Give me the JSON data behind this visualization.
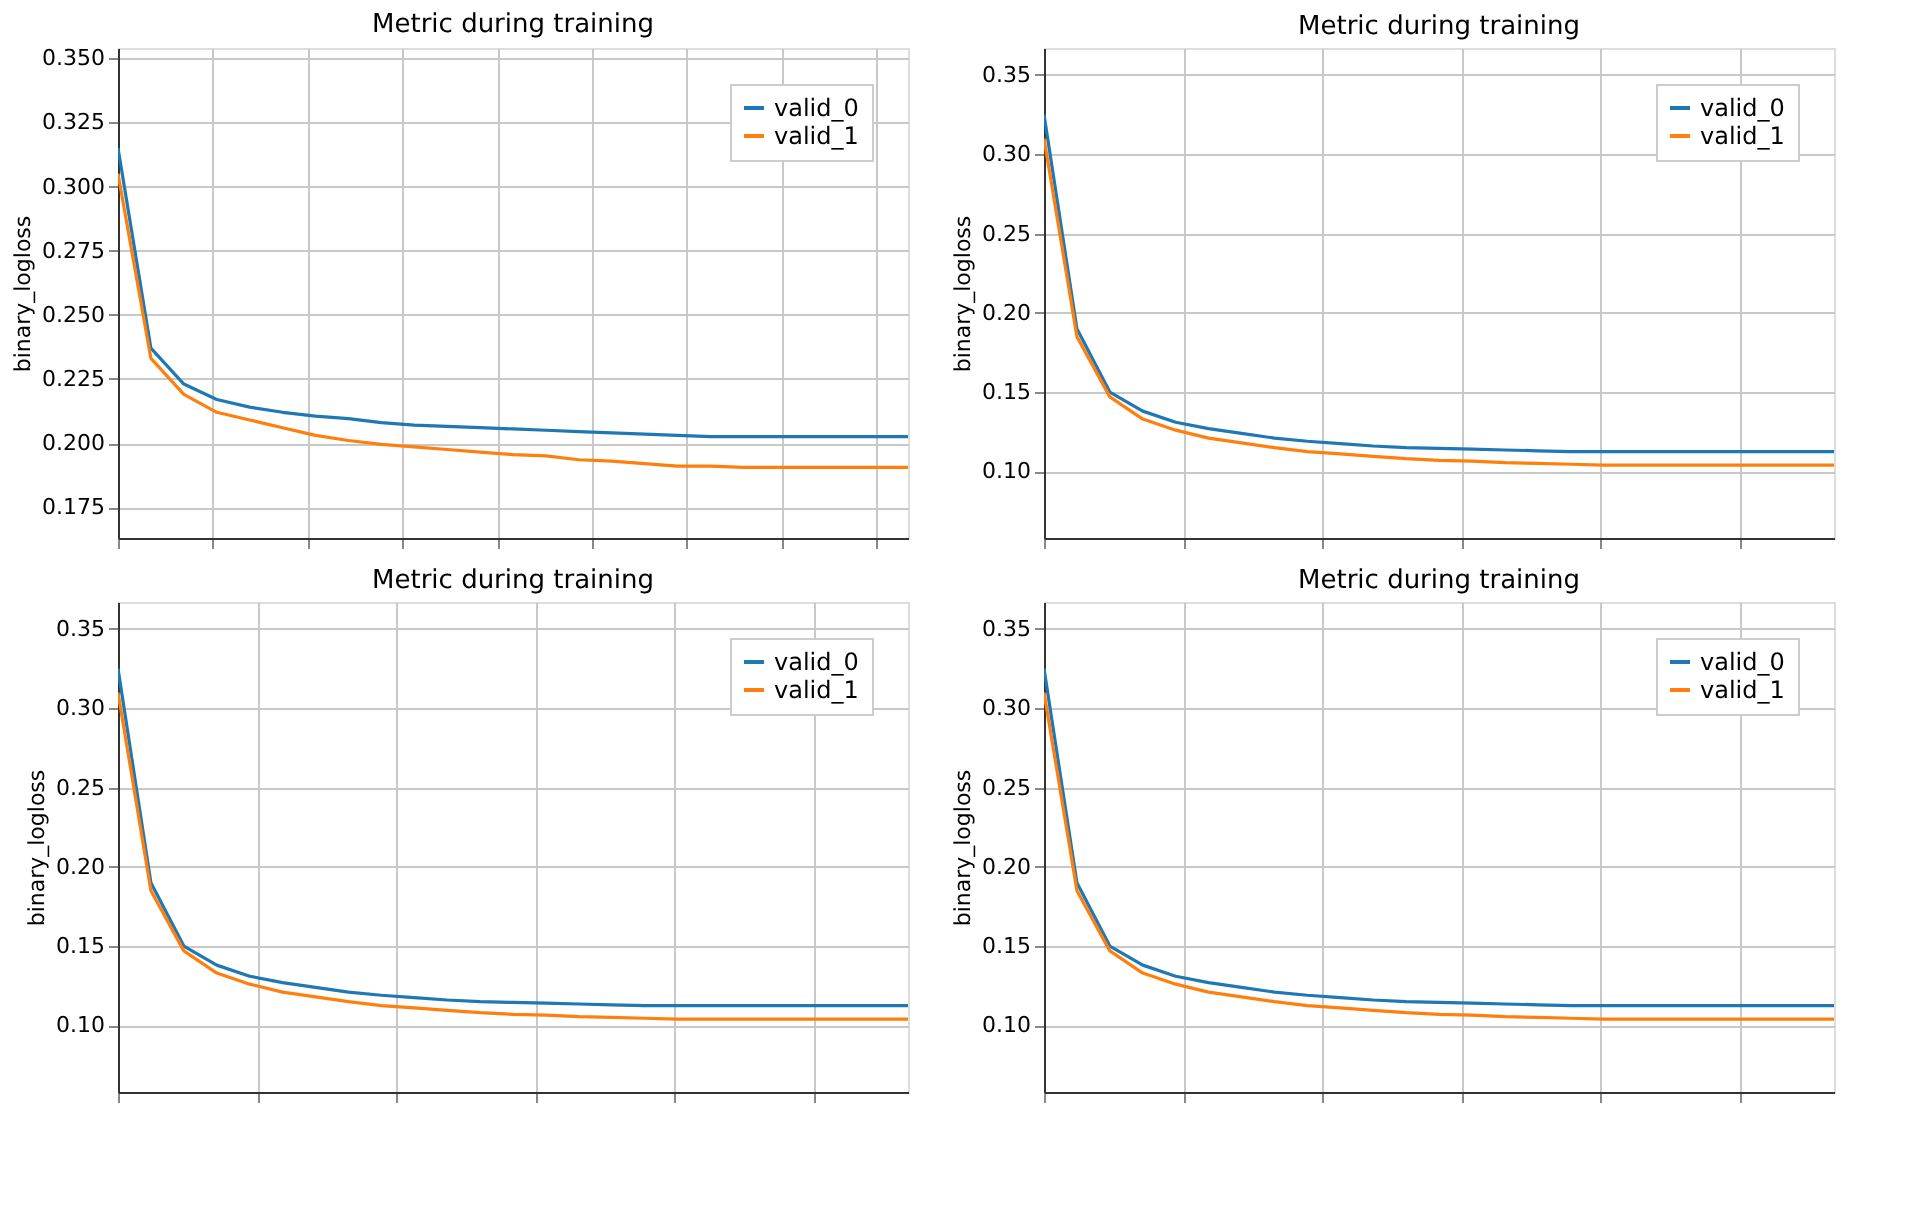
{
  "chart_data": [
    {
      "type": "line",
      "title": "Metric during training",
      "ylabel": "binary_logloss",
      "categories": [
        null,
        null,
        null,
        null,
        null,
        null,
        null,
        null,
        null,
        null,
        null,
        null,
        null,
        null,
        null,
        null,
        null,
        null,
        null,
        null,
        null,
        null,
        null,
        null,
        null
      ],
      "series": [
        {
          "name": "valid_0",
          "color": "#1f77b4",
          "values": [
            0.315,
            0.237,
            0.223,
            0.217,
            0.214,
            0.212,
            0.2105,
            0.2095,
            0.208,
            0.207,
            0.2065,
            0.206,
            0.2055,
            0.205,
            0.2045,
            0.204,
            0.2035,
            0.203,
            0.2025,
            0.2025,
            0.2025,
            0.2025,
            0.2025,
            0.2025,
            0.2025
          ]
        },
        {
          "name": "valid_1",
          "color": "#ff7f0e",
          "values": [
            0.305,
            0.233,
            0.219,
            0.212,
            0.209,
            0.206,
            0.203,
            0.201,
            0.1995,
            0.1985,
            0.1975,
            0.1965,
            0.1955,
            0.195,
            0.1935,
            0.193,
            0.192,
            0.191,
            0.191,
            0.1905,
            0.1905,
            0.1905,
            0.1905,
            0.1905,
            0.1905
          ]
        }
      ],
      "ylim": [
        0.163,
        0.354
      ],
      "yticks": [
        {
          "value": 0.175,
          "label": "0.175"
        },
        {
          "value": 0.2,
          "label": "0.200"
        },
        {
          "value": 0.225,
          "label": "0.225"
        },
        {
          "value": 0.25,
          "label": "0.250"
        },
        {
          "value": 0.275,
          "label": "0.275"
        },
        {
          "value": 0.3,
          "label": "0.300"
        },
        {
          "value": 0.325,
          "label": "0.325"
        },
        {
          "value": 0.35,
          "label": "0.350"
        }
      ],
      "grid": true,
      "legend": "top right",
      "tick_labels": "y",
      "marker": "none",
      "line_style": "solid"
    },
    {
      "type": "line",
      "title": "Metric during training",
      "ylabel": "binary_logloss",
      "categories": [
        null,
        null,
        null,
        null,
        null,
        null,
        null,
        null,
        null,
        null,
        null,
        null,
        null,
        null,
        null,
        null,
        null,
        null,
        null,
        null,
        null,
        null,
        null,
        null,
        null
      ],
      "series": [
        {
          "name": "valid_0",
          "color": "#1f77b4",
          "values": [
            0.325,
            0.19,
            0.15,
            0.138,
            0.131,
            0.127,
            0.124,
            0.121,
            0.119,
            0.1175,
            0.116,
            0.115,
            0.1145,
            0.114,
            0.1135,
            0.113,
            0.1125,
            0.1125,
            0.1125,
            0.1125,
            0.1125,
            0.1125,
            0.1125,
            0.1125,
            0.1125
          ]
        },
        {
          "name": "valid_1",
          "color": "#ff7f0e",
          "values": [
            0.31,
            0.185,
            0.147,
            0.133,
            0.126,
            0.121,
            0.118,
            0.115,
            0.1125,
            0.111,
            0.1095,
            0.108,
            0.107,
            0.1065,
            0.1055,
            0.105,
            0.1045,
            0.104,
            0.104,
            0.104,
            0.104,
            0.104,
            0.104,
            0.104,
            0.104
          ]
        }
      ],
      "ylim": [
        0.058,
        0.367
      ],
      "yticks": [
        {
          "value": 0.1,
          "label": "0.10"
        },
        {
          "value": 0.15,
          "label": "0.15"
        },
        {
          "value": 0.2,
          "label": "0.20"
        },
        {
          "value": 0.25,
          "label": "0.25"
        },
        {
          "value": 0.3,
          "label": "0.30"
        },
        {
          "value": 0.35,
          "label": "0.35"
        }
      ],
      "grid": true,
      "legend": "top right",
      "tick_labels": "y",
      "marker": "none",
      "line_style": "solid"
    },
    {
      "type": "line",
      "title": "Metric during training",
      "ylabel": "binary_logloss",
      "categories": [
        null,
        null,
        null,
        null,
        null,
        null,
        null,
        null,
        null,
        null,
        null,
        null,
        null,
        null,
        null,
        null,
        null,
        null,
        null,
        null,
        null,
        null,
        null,
        null,
        null
      ],
      "series": [
        {
          "name": "valid_0",
          "color": "#1f77b4",
          "values": [
            0.325,
            0.19,
            0.15,
            0.138,
            0.131,
            0.127,
            0.124,
            0.121,
            0.119,
            0.1175,
            0.116,
            0.115,
            0.1145,
            0.114,
            0.1135,
            0.113,
            0.1125,
            0.1125,
            0.1125,
            0.1125,
            0.1125,
            0.1125,
            0.1125,
            0.1125,
            0.1125
          ]
        },
        {
          "name": "valid_1",
          "color": "#ff7f0e",
          "values": [
            0.31,
            0.185,
            0.147,
            0.133,
            0.126,
            0.121,
            0.118,
            0.115,
            0.1125,
            0.111,
            0.1095,
            0.108,
            0.107,
            0.1065,
            0.1055,
            0.105,
            0.1045,
            0.104,
            0.104,
            0.104,
            0.104,
            0.104,
            0.104,
            0.104,
            0.104
          ]
        }
      ],
      "ylim": [
        0.058,
        0.367
      ],
      "yticks": [
        {
          "value": 0.1,
          "label": "0.10"
        },
        {
          "value": 0.15,
          "label": "0.15"
        },
        {
          "value": 0.2,
          "label": "0.20"
        },
        {
          "value": 0.25,
          "label": "0.25"
        },
        {
          "value": 0.3,
          "label": "0.30"
        },
        {
          "value": 0.35,
          "label": "0.35"
        }
      ],
      "grid": true,
      "legend": "top right",
      "tick_labels": "y",
      "marker": "none",
      "line_style": "solid"
    },
    {
      "type": "line",
      "title": "Metric during training",
      "ylabel": "binary_logloss",
      "categories": [
        null,
        null,
        null,
        null,
        null,
        null,
        null,
        null,
        null,
        null,
        null,
        null,
        null,
        null,
        null,
        null,
        null,
        null,
        null,
        null,
        null,
        null,
        null,
        null,
        null
      ],
      "series": [
        {
          "name": "valid_0",
          "color": "#1f77b4",
          "values": [
            0.325,
            0.19,
            0.15,
            0.138,
            0.131,
            0.127,
            0.124,
            0.121,
            0.119,
            0.1175,
            0.116,
            0.115,
            0.1145,
            0.114,
            0.1135,
            0.113,
            0.1125,
            0.1125,
            0.1125,
            0.1125,
            0.1125,
            0.1125,
            0.1125,
            0.1125,
            0.1125
          ]
        },
        {
          "name": "valid_1",
          "color": "#ff7f0e",
          "values": [
            0.31,
            0.185,
            0.147,
            0.133,
            0.126,
            0.121,
            0.118,
            0.115,
            0.1125,
            0.111,
            0.1095,
            0.108,
            0.107,
            0.1065,
            0.1055,
            0.105,
            0.1045,
            0.104,
            0.104,
            0.104,
            0.104,
            0.104,
            0.104,
            0.104,
            0.104
          ]
        }
      ],
      "ylim": [
        0.058,
        0.367
      ],
      "yticks": [
        {
          "value": 0.1,
          "label": "0.10"
        },
        {
          "value": 0.15,
          "label": "0.15"
        },
        {
          "value": 0.2,
          "label": "0.20"
        },
        {
          "value": 0.25,
          "label": "0.25"
        },
        {
          "value": 0.3,
          "label": "0.30"
        },
        {
          "value": 0.35,
          "label": "0.35"
        }
      ],
      "grid": true,
      "legend": "top right",
      "tick_labels": "y",
      "marker": "none",
      "line_style": "solid"
    }
  ]
}
